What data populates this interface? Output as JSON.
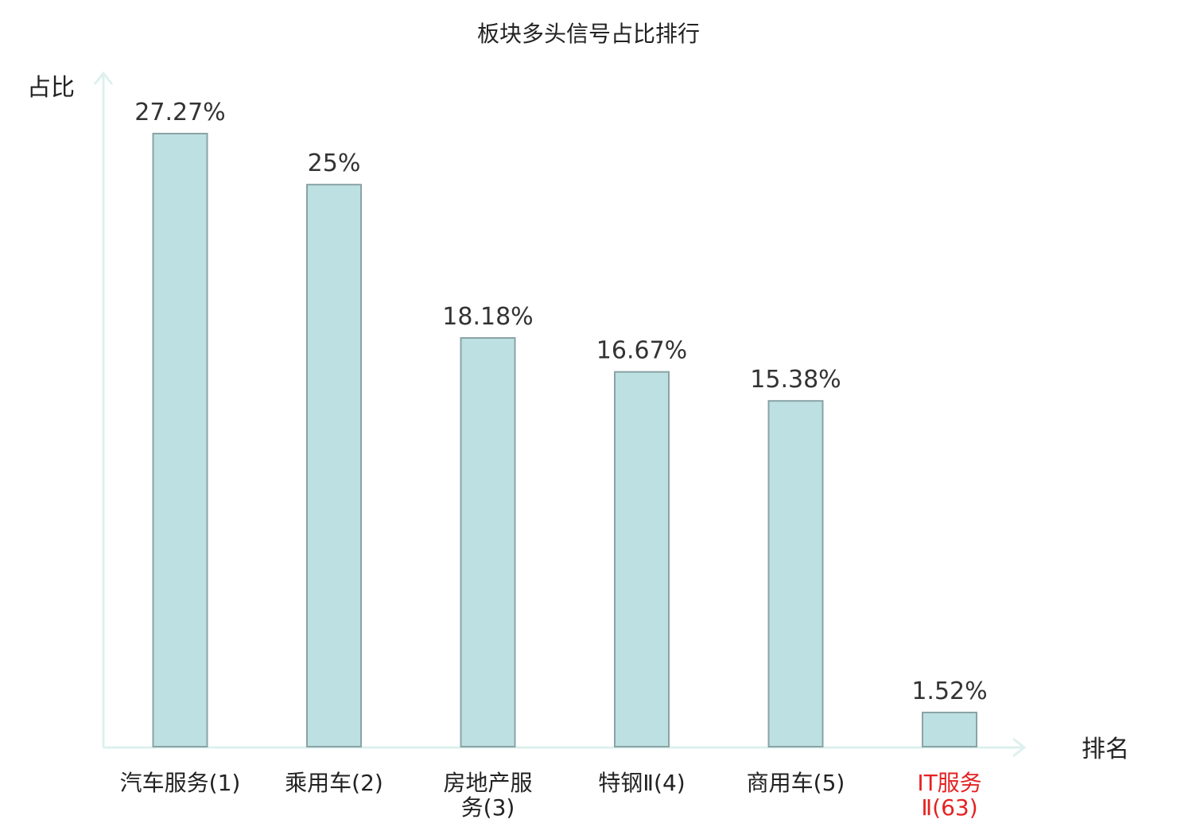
{
  "chart_data": {
    "type": "bar",
    "title": "板块多头信号占比排行",
    "ylabel": "占比",
    "xlabel": "排名",
    "unit": "%",
    "ylim": [
      0,
      27.27
    ],
    "grid": false,
    "legend": "none",
    "categories": [
      [
        "汽车服务(1)"
      ],
      [
        "乘用车(2)"
      ],
      [
        "房地产服",
        "务(3)"
      ],
      [
        "特钢Ⅱ(4)"
      ],
      [
        "商用车(5)"
      ],
      [
        "IT服务",
        "Ⅱ(63)"
      ]
    ],
    "values": [
      27.27,
      25,
      18.18,
      16.67,
      15.38,
      1.52
    ],
    "value_labels": [
      "27.27%",
      "25%",
      "18.18%",
      "16.67%",
      "15.38%",
      "1.52%"
    ],
    "highlight_index": 5
  },
  "colors": {
    "bar_fill": "#bde0e2",
    "bar_stroke": "#8aa3a5",
    "axis": "#ddf1ee",
    "text": "#222222",
    "value_text": "#333333",
    "highlight_text": "#e52222"
  }
}
